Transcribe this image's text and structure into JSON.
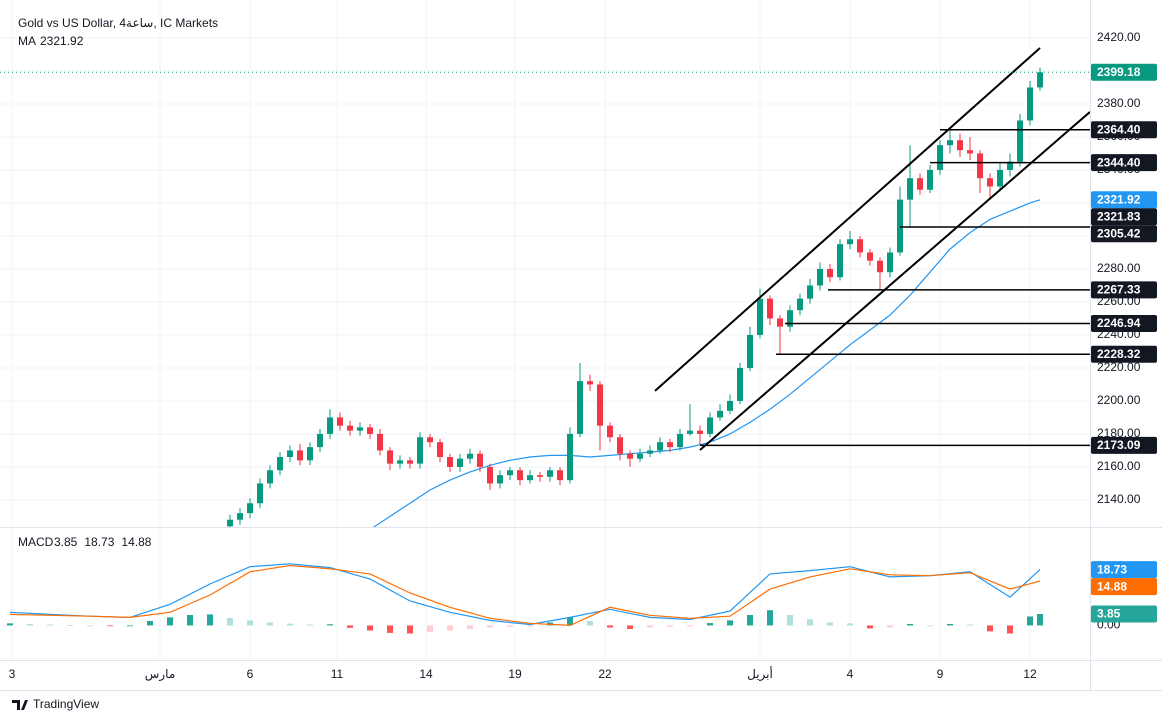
{
  "header": {
    "symbol": "Gold vs US Dollar, 4ساعة, IC Markets"
  },
  "chart_data": [
    {
      "type": "candlestick",
      "x": [
        22,
        23,
        24,
        25,
        26,
        27,
        28,
        29,
        30,
        31,
        32,
        33,
        34,
        35,
        36,
        37,
        38,
        39,
        40,
        41,
        42,
        43,
        44,
        45,
        46,
        47,
        48,
        49,
        50,
        51,
        52,
        53,
        54,
        55,
        56,
        57,
        58,
        59,
        60,
        61,
        62,
        63,
        64,
        65,
        66,
        67,
        68,
        69,
        70,
        71,
        72,
        73,
        74,
        75,
        76,
        77,
        78,
        79,
        80,
        81,
        82,
        83,
        84,
        85,
        86,
        87,
        88,
        89,
        90,
        91,
        92,
        93,
        94,
        95,
        96,
        97,
        98,
        99,
        100,
        101,
        102,
        103
      ],
      "open": [
        2124,
        2128,
        2132,
        2138,
        2150,
        2158,
        2166,
        2170,
        2164,
        2172,
        2180,
        2190,
        2185,
        2182,
        2184,
        2180,
        2170,
        2162,
        2164,
        2162,
        2178,
        2175,
        2166,
        2160,
        2165,
        2168,
        2160,
        2150,
        2155,
        2158,
        2152,
        2155,
        2154,
        2158,
        2152,
        2180,
        2212,
        2210,
        2185,
        2178,
        2168,
        2165,
        2168,
        2170,
        2175,
        2172,
        2180,
        2182,
        2180,
        2190,
        2194,
        2200,
        2220,
        2240,
        2262,
        2250,
        2245,
        2255,
        2262,
        2270,
        2280,
        2275,
        2295,
        2298,
        2290,
        2285,
        2278,
        2290,
        2322,
        2335,
        2328,
        2340,
        2355,
        2358,
        2352,
        2350,
        2335,
        2330,
        2340,
        2345,
        2370,
        2390
      ],
      "high": [
        2131,
        2135,
        2141,
        2153,
        2161,
        2169,
        2173,
        2174,
        2175,
        2183,
        2195,
        2193,
        2188,
        2187,
        2186,
        2183,
        2172,
        2167,
        2166,
        2181,
        2180,
        2177,
        2168,
        2168,
        2171,
        2170,
        2162,
        2158,
        2160,
        2160,
        2158,
        2157,
        2160,
        2160,
        2184,
        2223,
        2216,
        2212,
        2187,
        2180,
        2170,
        2171,
        2173,
        2178,
        2177,
        2183,
        2198,
        2185,
        2193,
        2198,
        2204,
        2223,
        2245,
        2268,
        2264,
        2252,
        2258,
        2265,
        2274,
        2284,
        2283,
        2298,
        2303,
        2300,
        2292,
        2287,
        2293,
        2330,
        2355,
        2338,
        2343,
        2358,
        2365,
        2362,
        2360,
        2352,
        2338,
        2344,
        2350,
        2374,
        2394,
        2402
      ],
      "low": [
        2121,
        2125,
        2129,
        2135,
        2147,
        2155,
        2163,
        2161,
        2161,
        2169,
        2177,
        2182,
        2179,
        2179,
        2177,
        2167,
        2158,
        2159,
        2159,
        2159,
        2172,
        2163,
        2157,
        2157,
        2162,
        2157,
        2146,
        2147,
        2152,
        2149,
        2150,
        2151,
        2151,
        2149,
        2150,
        2178,
        2206,
        2170,
        2175,
        2164,
        2160,
        2163,
        2166,
        2168,
        2169,
        2170,
        2179,
        2173,
        2178,
        2188,
        2192,
        2198,
        2218,
        2238,
        2246,
        2228,
        2242,
        2252,
        2259,
        2267,
        2272,
        2273,
        2292,
        2287,
        2282,
        2267,
        2275,
        2288,
        2305,
        2325,
        2326,
        2337,
        2350,
        2348,
        2346,
        2326,
        2322,
        2327,
        2336,
        2342,
        2367,
        2388
      ],
      "close": [
        2128,
        2132,
        2138,
        2150,
        2158,
        2166,
        2170,
        2164,
        2172,
        2180,
        2190,
        2185,
        2182,
        2184,
        2180,
        2170,
        2162,
        2164,
        2162,
        2178,
        2175,
        2166,
        2160,
        2165,
        2168,
        2160,
        2150,
        2155,
        2158,
        2152,
        2155,
        2154,
        2158,
        2152,
        2180,
        2212,
        2210,
        2185,
        2178,
        2168,
        2165,
        2168,
        2170,
        2175,
        2172,
        2180,
        2182,
        2180,
        2190,
        2194,
        2200,
        2220,
        2240,
        2262,
        2250,
        2245,
        2255,
        2262,
        2270,
        2280,
        2275,
        2295,
        2298,
        2290,
        2285,
        2278,
        2290,
        2322,
        2335,
        2328,
        2340,
        2355,
        2358,
        2352,
        2350,
        2335,
        2330,
        2340,
        2345,
        2370,
        2390,
        2399.18
      ],
      "color_up": "#089981",
      "color_down": "#f23645",
      "ma": {
        "name": "MA",
        "color": "#2196f3",
        "x": [
          36,
          38,
          40,
          42,
          44,
          46,
          48,
          50,
          52,
          54,
          56,
          58,
          60,
          62,
          64,
          66,
          68,
          70,
          72,
          74,
          76,
          78,
          80,
          82,
          84,
          86,
          88,
          90,
          92,
          94,
          96,
          98,
          100,
          102,
          103
        ],
        "values": [
          2122,
          2130,
          2138,
          2146,
          2152,
          2157,
          2161,
          2164,
          2166,
          2167,
          2167,
          2166,
          2167,
          2168,
          2169,
          2170,
          2172,
          2175,
          2180,
          2187,
          2195,
          2204,
          2214,
          2224,
          2234,
          2243,
          2252,
          2264,
          2278,
          2292,
          2302,
          2310,
          2315,
          2320,
          2321.92
        ]
      },
      "levels": [
        {
          "value": 2364.4,
          "label": "2364.40",
          "from": 93
        },
        {
          "value": 2344.4,
          "label": "2344.40",
          "from": 92
        },
        {
          "value": 2321.83,
          "label": "2321.83"
        },
        {
          "value": 2305.42,
          "label": "2305.42",
          "from": 89
        },
        {
          "value": 2267.33,
          "label": "2267.33",
          "from": 81.8
        },
        {
          "value": 2246.94,
          "label": "2246.94",
          "from": 77.5
        },
        {
          "value": 2228.32,
          "label": "2228.32",
          "from": 76.6
        },
        {
          "value": 2173.09,
          "label": "2173.09",
          "from": 69
        }
      ],
      "trendlines": [
        {
          "x": [
            64.5,
            103
          ],
          "y": [
            2206.1,
            2413.9
          ]
        },
        {
          "x": [
            69,
            108
          ],
          "y": [
            2170.3,
            2375.2
          ]
        }
      ],
      "xlim": [
        0,
        108
      ],
      "ylim": [
        2123.6,
        2443
      ],
      "yticks": [
        {
          "value": 2140,
          "label": "2140.00"
        },
        {
          "value": 2160,
          "label": "2160.00"
        },
        {
          "value": 2180,
          "label": "2180.00"
        },
        {
          "value": 2200,
          "label": "2200.00"
        },
        {
          "value": 2220,
          "label": "2220.00"
        },
        {
          "value": 2240,
          "label": "2240.00"
        },
        {
          "value": 2260,
          "label": "2260.00"
        },
        {
          "value": 2280,
          "label": "2280.00"
        },
        {
          "value": 2300,
          "label": "2300.00"
        },
        {
          "value": 2320,
          "label": "2320.00"
        },
        {
          "value": 2340,
          "label": "2340.00"
        },
        {
          "value": 2360,
          "label": "2360.00"
        },
        {
          "value": 2380,
          "label": "2380.00"
        },
        {
          "value": 2400,
          "label": "2400.00"
        },
        {
          "value": 2420,
          "label": "2420.00"
        }
      ],
      "xticks": [
        {
          "value": 0.2,
          "label": "3"
        },
        {
          "value": 15,
          "label": "مارس"
        },
        {
          "value": 24,
          "label": "6"
        },
        {
          "value": 32.7,
          "label": "11"
        },
        {
          "value": 41.6,
          "label": "14"
        },
        {
          "value": 50.5,
          "label": "19"
        },
        {
          "value": 59.5,
          "label": "22"
        },
        {
          "value": 75,
          "label": "أبريل"
        },
        {
          "value": 84,
          "label": "4"
        },
        {
          "value": 93,
          "label": "9"
        },
        {
          "value": 102,
          "label": "12"
        }
      ],
      "grid": true
    },
    {
      "type": "macd",
      "name": "MACD",
      "x": [
        0,
        4,
        8,
        12,
        16,
        20,
        24,
        28,
        32,
        36,
        40,
        44,
        48,
        52,
        56,
        60,
        64,
        68,
        72,
        76,
        80,
        84,
        88,
        92,
        96,
        100,
        103
      ],
      "series": [
        {
          "color": "#2196f3",
          "values": [
            4.4,
            3.7,
            3.1,
            2.7,
            7.1,
            13.9,
            19.7,
            20.7,
            19.4,
            15.6,
            8.2,
            4.4,
            1.7,
            0.3,
            2.7,
            5.4,
            2.7,
            2.0,
            4.8,
            17.3,
            18.4,
            19.7,
            16.3,
            16.7,
            18.0,
            9.5,
            18.73
          ]
        },
        {
          "color": "#ff6d00",
          "values": [
            3.7,
            3.4,
            3.1,
            2.7,
            4.4,
            10.2,
            18.0,
            20.1,
            19.0,
            17.3,
            10.9,
            6.1,
            2.4,
            0.7,
            0,
            6.1,
            3.4,
            2.4,
            3.1,
            12.2,
            16.3,
            19.0,
            17.0,
            16.7,
            17.7,
            12.2,
            14.88
          ]
        }
      ],
      "histogram": {
        "color": "#26a69a",
        "x": [
          0,
          2,
          4,
          6,
          8,
          10,
          12,
          14,
          16,
          18,
          20,
          22,
          24,
          26,
          28,
          30,
          32,
          34,
          36,
          38,
          40,
          42,
          44,
          46,
          48,
          50,
          52,
          54,
          56,
          58,
          60,
          62,
          64,
          66,
          68,
          70,
          72,
          74,
          76,
          78,
          80,
          82,
          84,
          86,
          88,
          90,
          92,
          94,
          96,
          98,
          100,
          102,
          103
        ],
        "values": [
          0.7,
          0.5,
          0.3,
          0.1,
          0,
          -0.2,
          0,
          1.5,
          2.7,
          3.5,
          3.7,
          2.5,
          1.7,
          1.0,
          0.6,
          0.3,
          0.4,
          -0.8,
          -1.7,
          -2.5,
          -2.7,
          -2.2,
          -1.7,
          -1.2,
          -0.7,
          -0.5,
          -0.4,
          1.0,
          2.7,
          1.5,
          -0.7,
          -1.2,
          -0.7,
          -0.5,
          -0.4,
          0.8,
          1.7,
          3.5,
          5.1,
          3.5,
          2.1,
          1.0,
          0.7,
          -1.0,
          -0.7,
          0.5,
          0,
          0.5,
          0.3,
          -2.0,
          -2.7,
          3.0,
          3.85
        ]
      },
      "xlim": [
        0,
        108
      ],
      "ylim": [
        -11.6,
        32.7
      ],
      "yticks": [
        {
          "value": 0,
          "label": "0.00"
        }
      ]
    }
  ],
  "footer": {
    "brand": "TradingView"
  }
}
